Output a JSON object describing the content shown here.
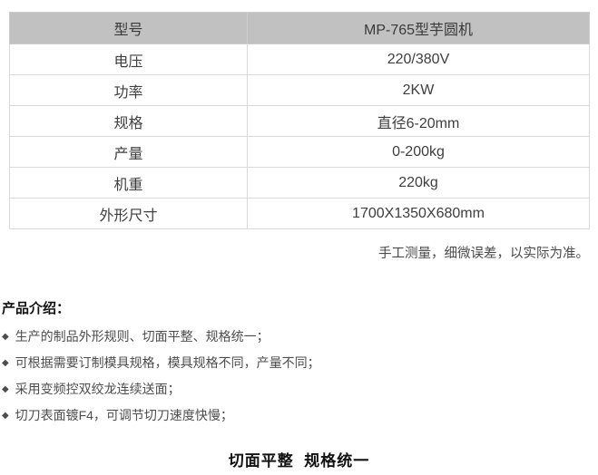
{
  "spec_table": {
    "rows": [
      {
        "label": "型号",
        "value": "MP-765型芋圆机",
        "header": true
      },
      {
        "label": "电压",
        "value": "220/380V",
        "header": false
      },
      {
        "label": "功率",
        "value": "2KW",
        "header": false
      },
      {
        "label": "规格",
        "value": "直径6-20mm",
        "header": false
      },
      {
        "label": "产量",
        "value": "0-200kg",
        "header": false
      },
      {
        "label": "机重",
        "value": "220kg",
        "header": false
      },
      {
        "label": "外形尺寸",
        "value": "1700X1350X680mm",
        "header": false
      }
    ]
  },
  "measure_note": "手工测量，细微误差，以实际为准。",
  "intro": {
    "heading": "产品介绍：",
    "bullet_marker": "◆",
    "bullets": [
      "生产的制品外形规则、切面平整、规格统一；",
      "可根据需要订制模具规格，模具规格不同，产量不同；",
      "采用变频控双绞龙连续送面；",
      "切刀表面镀F4，可调节切刀速度快慢；"
    ]
  },
  "footer_title": "切面平整  规格统一",
  "colors": {
    "header_bg": "#c1c1c1",
    "border": "#d9d9d9",
    "table_text": "#3e3e3e",
    "body_text": "#4d4d4d",
    "heading_text": "#111111"
  }
}
